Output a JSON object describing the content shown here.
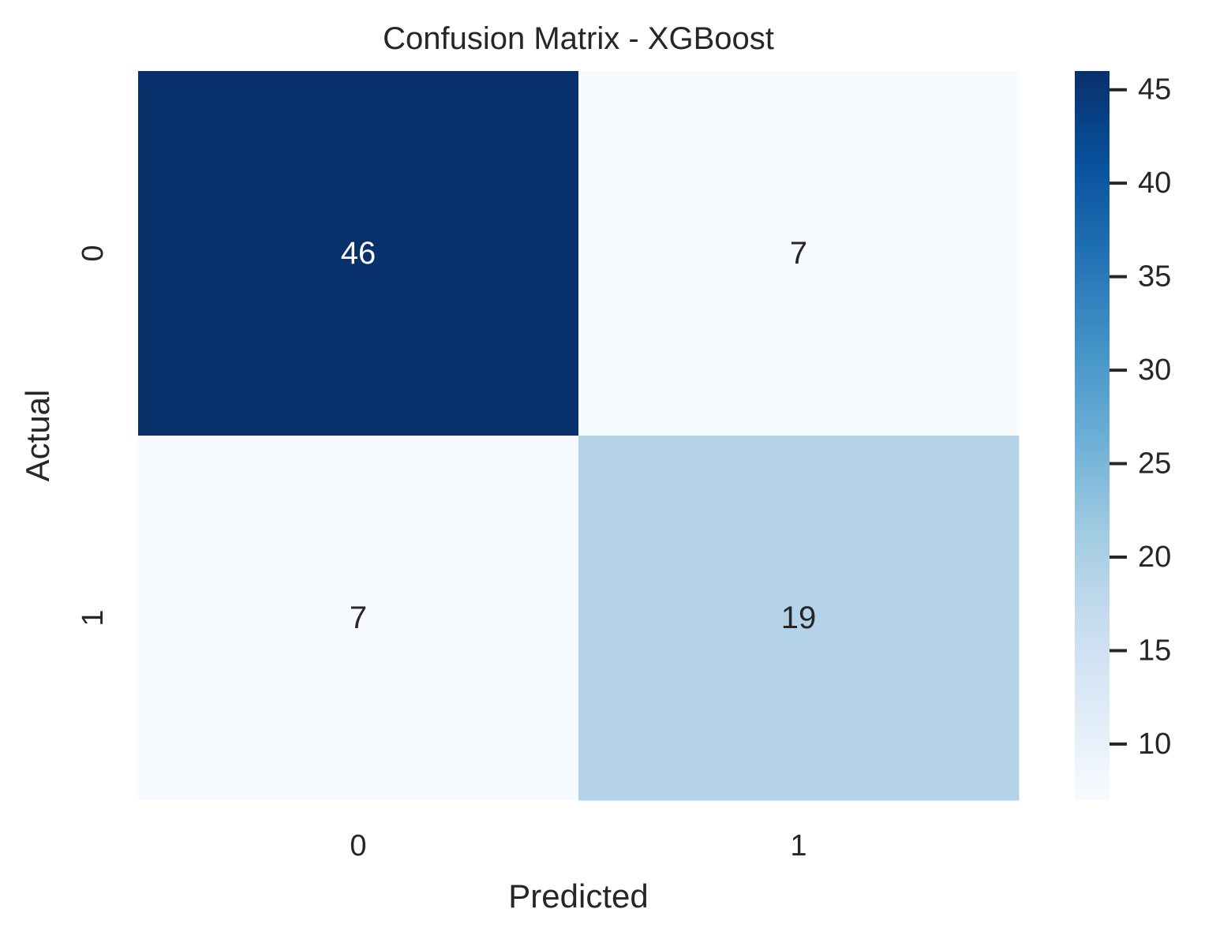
{
  "chart_data": {
    "type": "heatmap",
    "title": "Confusion Matrix - XGBoost",
    "xlabel": "Predicted",
    "ylabel": "Actual",
    "x_categories": [
      "0",
      "1"
    ],
    "y_categories": [
      "0",
      "1"
    ],
    "values": [
      [
        46,
        7
      ],
      [
        7,
        19
      ]
    ],
    "colormap": "Blues",
    "colorbar": {
      "min": 7,
      "max": 46,
      "ticks": [
        10,
        15,
        20,
        25,
        30,
        35,
        40,
        45
      ],
      "tick_labels": [
        "10",
        "15",
        "20",
        "25",
        "30",
        "35",
        "40",
        "45"
      ]
    },
    "annotations": true,
    "grid": false
  },
  "colors": {
    "text_dark": "#262626",
    "text_light": "#ffffff",
    "cmap_stops": [
      "#f7fbff",
      "#deebf7",
      "#c6dbef",
      "#9ecae1",
      "#6baed6",
      "#4292c6",
      "#2171b5",
      "#08519c",
      "#08306b"
    ]
  }
}
